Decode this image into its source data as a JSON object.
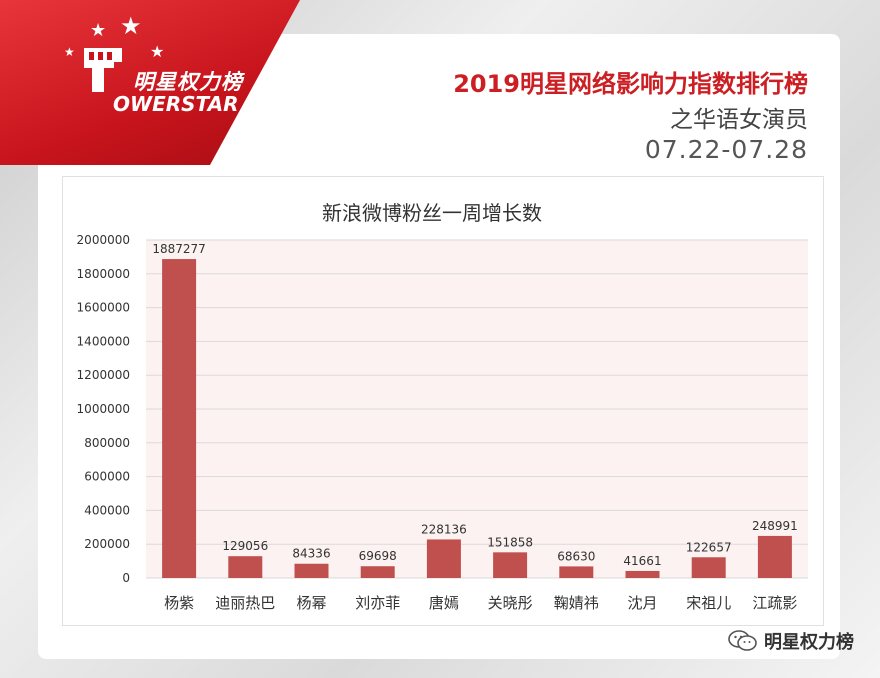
{
  "brand": {
    "name_cn": "明星权力榜",
    "name_en": "OWERSTAR",
    "color": "#d21f26"
  },
  "header": {
    "title": "2019明星网络影响力指数排行榜",
    "subtitle": "之华语女演员",
    "date_range": "07.22-07.28"
  },
  "footer": {
    "account": "明星权力榜",
    "icon": "wechat-icon"
  },
  "chart_data": {
    "type": "bar",
    "title": "新浪微博粉丝一周增长数",
    "categories": [
      "杨紫",
      "迪丽热巴",
      "杨幂",
      "刘亦菲",
      "唐嫣",
      "关晓彤",
      "鞠婧祎",
      "沈月",
      "宋祖儿",
      "江疏影"
    ],
    "values": [
      1887277,
      129056,
      84336,
      69698,
      228136,
      151858,
      68630,
      41661,
      122657,
      248991
    ],
    "ylim": [
      0,
      2000000
    ],
    "yticks": [
      0,
      200000,
      400000,
      600000,
      800000,
      1000000,
      1200000,
      1400000,
      1600000,
      1800000,
      2000000
    ],
    "xlabel": "",
    "ylabel": "",
    "grid": true,
    "bar_color": "#c0504d",
    "plot_bg": "#fdf2f2",
    "grid_color": "#d9d9d9"
  }
}
